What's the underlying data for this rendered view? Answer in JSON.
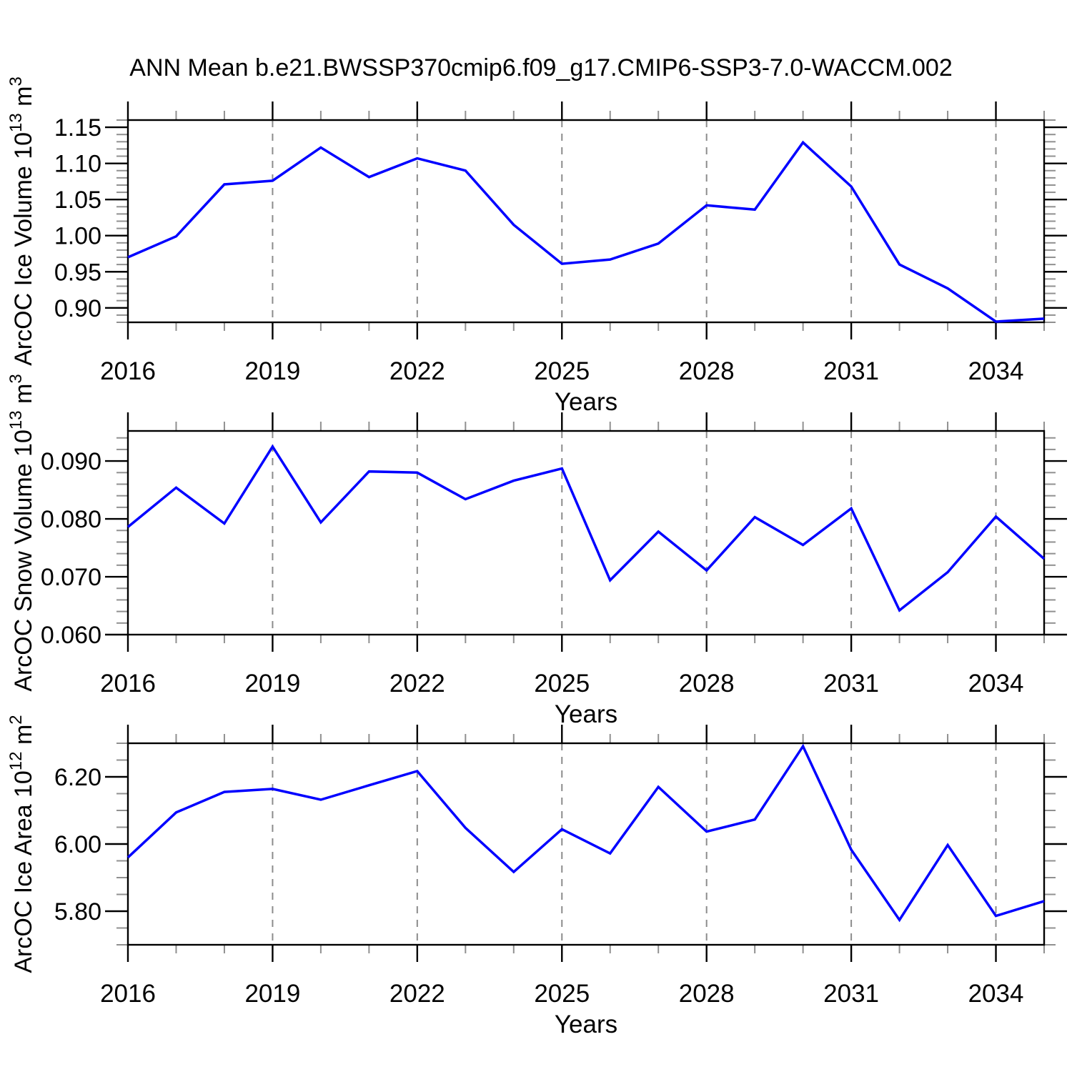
{
  "title": "ANN Mean b.e21.BWSSP370cmip6.f09_g17.CMIP6-SSP3-7.0-WACCM.002",
  "styles": {
    "line_color": "#0000ff",
    "grid_color": "#8c8c8c",
    "axis_color": "#000000",
    "minor_tick_color": "#909090",
    "background": "#ffffff"
  },
  "x_axis": {
    "label": "Years",
    "xlim": [
      2016,
      2035
    ],
    "tick_years_major": [
      2016,
      2019,
      2022,
      2025,
      2028,
      2031,
      2034
    ],
    "tick_labels": [
      "2016",
      "2019",
      "2022",
      "2025",
      "2028",
      "2031",
      "2034"
    ],
    "minor_step": 1,
    "grid_years": [
      2019,
      2022,
      2025,
      2028,
      2031,
      2034
    ]
  },
  "chart_data": [
    {
      "type": "line",
      "ylabel": "ArcOC Ice Volume 10¹³ m³",
      "ylabel_parts": [
        {
          "text": "ArcOC Ice Volume 10"
        },
        {
          "text": "13",
          "sup": true
        },
        {
          "text": " m"
        },
        {
          "text": "3",
          "sup": true
        }
      ],
      "xlabel": "Years",
      "x": [
        2016,
        2017,
        2018,
        2019,
        2020,
        2021,
        2022,
        2023,
        2024,
        2025,
        2026,
        2027,
        2028,
        2029,
        2030,
        2031,
        2032,
        2033,
        2034,
        2035
      ],
      "values": [
        0.97,
        0.999,
        1.071,
        1.076,
        1.122,
        1.081,
        1.107,
        1.09,
        1.015,
        0.961,
        0.967,
        0.989,
        1.042,
        1.036,
        1.129,
        1.068,
        0.96,
        0.927,
        0.881,
        0.885
      ],
      "ylim": [
        0.88,
        1.16
      ],
      "ytick_major": [
        0.9,
        0.95,
        1.0,
        1.05,
        1.1,
        1.15
      ],
      "ytick_labels": [
        "0.90",
        "0.95",
        "1.00",
        "1.05",
        "1.10",
        "1.15"
      ],
      "ytick_minor_step": 0.01,
      "grid": true,
      "legend": "none"
    },
    {
      "type": "line",
      "ylabel": "ArcOC Snow Volume 10¹³ m³",
      "ylabel_parts": [
        {
          "text": "ArcOC Snow Volume 10"
        },
        {
          "text": "13",
          "sup": true
        },
        {
          "text": " m"
        },
        {
          "text": "3",
          "sup": true
        }
      ],
      "xlabel": "Years",
      "x": [
        2016,
        2017,
        2018,
        2019,
        2020,
        2021,
        2022,
        2023,
        2024,
        2025,
        2026,
        2027,
        2028,
        2029,
        2030,
        2031,
        2032,
        2033,
        2034,
        2035
      ],
      "values": [
        0.0786,
        0.0854,
        0.0792,
        0.0925,
        0.0794,
        0.0882,
        0.088,
        0.0834,
        0.0866,
        0.0887,
        0.0694,
        0.0778,
        0.0711,
        0.0803,
        0.0755,
        0.0818,
        0.0642,
        0.0708,
        0.0804,
        0.0731
      ],
      "ylim": [
        0.06,
        0.0952
      ],
      "ytick_major": [
        0.06,
        0.07,
        0.08,
        0.09
      ],
      "ytick_labels": [
        "0.060",
        "0.070",
        "0.080",
        "0.090"
      ],
      "ytick_minor_step": 0.002,
      "grid": true,
      "legend": "none"
    },
    {
      "type": "line",
      "ylabel": "ArcOC Ice Area 10¹² m²",
      "ylabel_parts": [
        {
          "text": "ArcOC Ice Area 10"
        },
        {
          "text": "12",
          "sup": true
        },
        {
          "text": " m"
        },
        {
          "text": "2",
          "sup": true
        }
      ],
      "xlabel": "Years",
      "x": [
        2016,
        2017,
        2018,
        2019,
        2020,
        2021,
        2022,
        2023,
        2024,
        2025,
        2026,
        2027,
        2028,
        2029,
        2030,
        2031,
        2032,
        2033,
        2034,
        2035
      ],
      "values": [
        5.96,
        6.094,
        6.155,
        6.164,
        6.132,
        6.175,
        6.217,
        6.048,
        5.917,
        6.044,
        5.972,
        6.17,
        6.037,
        6.073,
        6.291,
        5.983,
        5.774,
        5.997,
        5.786,
        5.83
      ],
      "ylim": [
        5.7,
        6.3
      ],
      "ytick_major": [
        5.8,
        6.0,
        6.2
      ],
      "ytick_labels": [
        "5.80",
        "6.00",
        "6.20"
      ],
      "ytick_minor_step": 0.05,
      "grid": true,
      "legend": "none"
    }
  ]
}
